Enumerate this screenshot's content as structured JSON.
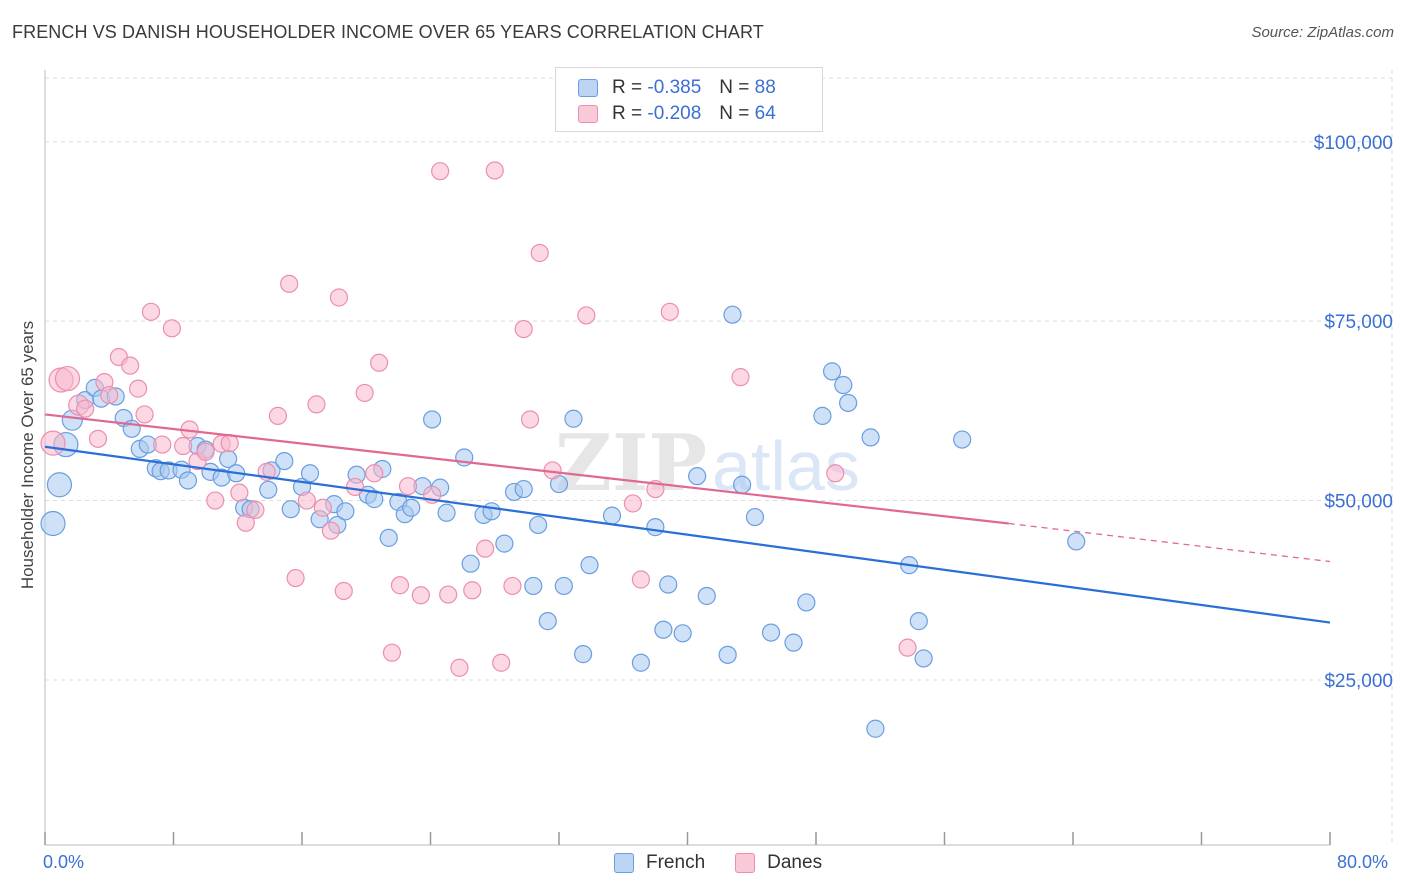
{
  "header": {
    "title": "FRENCH VS DANISH HOUSEHOLDER INCOME OVER 65 YEARS CORRELATION CHART",
    "source": "Source: ZipAtlas.com"
  },
  "legend": {
    "french": {
      "r_label": "R =",
      "r_value": "-0.385",
      "n_label": "N =",
      "n_value": "88"
    },
    "danes": {
      "r_label": "R =",
      "r_value": "-0.208",
      "n_label": "N =",
      "n_value": "64"
    },
    "bottom": [
      "French",
      "Danes"
    ]
  },
  "colors": {
    "french_fill": "#a8c8f0",
    "french_stroke": "#6a9ee0",
    "french_line": "#2a6fd6",
    "danes_fill": "#f7b8cc",
    "danes_stroke": "#ec8fae",
    "danes_line": "#e06892",
    "axis_text": "#3b6fd4",
    "grid": "#dddddd"
  },
  "chart_data": {
    "type": "scatter",
    "title": "FRENCH VS DANISH HOUSEHOLDER INCOME OVER 65 YEARS CORRELATION CHART",
    "xlabel": "",
    "ylabel": "Householder Income Over 65 years",
    "xlim": [
      0,
      80
    ],
    "ylim": [
      2000,
      110000
    ],
    "x_tick_labels": [
      "0.0%",
      "80.0%"
    ],
    "y_ticks": [
      25000,
      50000,
      75000,
      100000
    ],
    "y_tick_labels": [
      "$25,000",
      "$50,000",
      "$75,000",
      "$100,000"
    ],
    "grid": true,
    "legend_position": "top-center",
    "watermark": "ZIPatlas",
    "series": [
      {
        "name": "French",
        "trend": {
          "x": [
            0,
            80
          ],
          "y": [
            57500,
            33000
          ]
        },
        "points": [
          [
            0.5,
            46800
          ],
          [
            0.9,
            52200
          ],
          [
            1.3,
            57800
          ],
          [
            1.7,
            61200
          ],
          [
            2.5,
            64000
          ],
          [
            3.1,
            65700
          ],
          [
            3.5,
            64200
          ],
          [
            4.4,
            64500
          ],
          [
            4.9,
            61500
          ],
          [
            5.4,
            60000
          ],
          [
            5.9,
            57200
          ],
          [
            6.4,
            57800
          ],
          [
            6.9,
            54500
          ],
          [
            7.2,
            54100
          ],
          [
            7.7,
            54200
          ],
          [
            8.5,
            54300
          ],
          [
            8.9,
            52800
          ],
          [
            9.5,
            57600
          ],
          [
            10.0,
            57100
          ],
          [
            10.3,
            54000
          ],
          [
            11.0,
            53200
          ],
          [
            11.4,
            55800
          ],
          [
            11.9,
            53800
          ],
          [
            12.4,
            49000
          ],
          [
            12.8,
            48800
          ],
          [
            13.9,
            51500
          ],
          [
            14.1,
            54200
          ],
          [
            14.9,
            55500
          ],
          [
            15.3,
            48800
          ],
          [
            16.0,
            51900
          ],
          [
            16.5,
            53800
          ],
          [
            17.1,
            47400
          ],
          [
            18.0,
            49500
          ],
          [
            18.2,
            46600
          ],
          [
            18.7,
            48500
          ],
          [
            19.4,
            53600
          ],
          [
            20.1,
            50800
          ],
          [
            20.5,
            50200
          ],
          [
            21.0,
            54400
          ],
          [
            21.4,
            44800
          ],
          [
            22.0,
            49800
          ],
          [
            22.4,
            48100
          ],
          [
            22.8,
            49000
          ],
          [
            23.5,
            52000
          ],
          [
            24.1,
            61300
          ],
          [
            24.6,
            51800
          ],
          [
            25.0,
            48300
          ],
          [
            26.1,
            56000
          ],
          [
            26.5,
            41200
          ],
          [
            27.3,
            48000
          ],
          [
            27.8,
            48500
          ],
          [
            28.6,
            44000
          ],
          [
            29.2,
            51200
          ],
          [
            29.8,
            51600
          ],
          [
            30.4,
            38100
          ],
          [
            30.7,
            46600
          ],
          [
            31.3,
            33200
          ],
          [
            32.0,
            52300
          ],
          [
            32.3,
            38100
          ],
          [
            32.9,
            61400
          ],
          [
            33.5,
            28600
          ],
          [
            33.9,
            41000
          ],
          [
            35.3,
            47900
          ],
          [
            37.1,
            27400
          ],
          [
            38.0,
            46300
          ],
          [
            38.5,
            32000
          ],
          [
            38.8,
            38300
          ],
          [
            39.7,
            31500
          ],
          [
            40.6,
            53400
          ],
          [
            41.2,
            36700
          ],
          [
            42.5,
            28500
          ],
          [
            42.8,
            75900
          ],
          [
            43.4,
            52200
          ],
          [
            44.2,
            47700
          ],
          [
            45.2,
            31600
          ],
          [
            46.6,
            30200
          ],
          [
            47.4,
            35800
          ],
          [
            48.4,
            61800
          ],
          [
            49.0,
            68000
          ],
          [
            49.7,
            66100
          ],
          [
            50.0,
            63600
          ],
          [
            51.4,
            58800
          ],
          [
            51.7,
            18200
          ],
          [
            53.8,
            41000
          ],
          [
            54.4,
            33200
          ],
          [
            54.7,
            28000
          ],
          [
            57.1,
            58500
          ],
          [
            64.2,
            44300
          ]
        ]
      },
      {
        "name": "Danes",
        "trend": {
          "x": [
            0,
            60
          ],
          "y": [
            62000,
            46800
          ],
          "dashed_to": {
            "x": 80,
            "y": 41500
          }
        },
        "points": [
          [
            0.5,
            58000
          ],
          [
            1.0,
            66800
          ],
          [
            1.4,
            67000
          ],
          [
            2.1,
            63300
          ],
          [
            2.5,
            62800
          ],
          [
            3.3,
            58600
          ],
          [
            3.7,
            66500
          ],
          [
            4.0,
            64700
          ],
          [
            4.6,
            70000
          ],
          [
            5.3,
            68800
          ],
          [
            5.8,
            65600
          ],
          [
            6.2,
            62000
          ],
          [
            6.6,
            76300
          ],
          [
            7.3,
            57800
          ],
          [
            7.9,
            74000
          ],
          [
            8.6,
            57600
          ],
          [
            9.0,
            59900
          ],
          [
            9.5,
            55500
          ],
          [
            10.0,
            56800
          ],
          [
            10.6,
            50000
          ],
          [
            11.0,
            57900
          ],
          [
            11.5,
            58000
          ],
          [
            12.1,
            51100
          ],
          [
            12.5,
            46900
          ],
          [
            13.1,
            48700
          ],
          [
            13.8,
            54000
          ],
          [
            14.5,
            61800
          ],
          [
            15.2,
            80200
          ],
          [
            15.6,
            39200
          ],
          [
            16.3,
            50000
          ],
          [
            16.9,
            63400
          ],
          [
            17.3,
            49000
          ],
          [
            17.8,
            45800
          ],
          [
            18.3,
            78300
          ],
          [
            18.6,
            37400
          ],
          [
            19.3,
            51900
          ],
          [
            19.9,
            65000
          ],
          [
            20.5,
            53800
          ],
          [
            20.8,
            69200
          ],
          [
            21.6,
            28800
          ],
          [
            22.1,
            38200
          ],
          [
            22.6,
            52000
          ],
          [
            23.4,
            36800
          ],
          [
            24.1,
            50800
          ],
          [
            24.6,
            95900
          ],
          [
            25.1,
            36900
          ],
          [
            25.8,
            26700
          ],
          [
            26.6,
            37500
          ],
          [
            27.4,
            43300
          ],
          [
            28.0,
            96000
          ],
          [
            28.4,
            27400
          ],
          [
            29.1,
            38100
          ],
          [
            29.8,
            73900
          ],
          [
            30.2,
            61300
          ],
          [
            30.8,
            84500
          ],
          [
            31.6,
            54200
          ],
          [
            33.7,
            75800
          ],
          [
            36.6,
            49600
          ],
          [
            37.1,
            39000
          ],
          [
            38.0,
            51600
          ],
          [
            38.9,
            76300
          ],
          [
            43.3,
            67200
          ],
          [
            49.2,
            53800
          ],
          [
            53.7,
            29500
          ]
        ]
      }
    ]
  }
}
